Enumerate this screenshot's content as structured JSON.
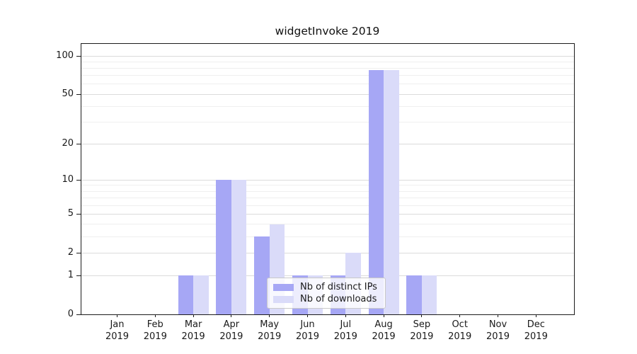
{
  "page": {
    "background": "#ffffff"
  },
  "chart_data": {
    "type": "bar",
    "title": "widgetInvoke 2019",
    "categories": [
      "Jan 2019",
      "Feb 2019",
      "Mar 2019",
      "Apr 2019",
      "May 2019",
      "Jun 2019",
      "Jul 2019",
      "Aug 2019",
      "Sep 2019",
      "Oct 2019",
      "Nov 2019",
      "Dec 2019"
    ],
    "series": [
      {
        "name": "Nb of distinct IPs",
        "color": "#a6a7f5",
        "values": [
          0,
          0,
          1,
          10,
          3,
          1,
          1,
          77,
          1,
          0,
          0,
          0
        ]
      },
      {
        "name": "Nb of downloads",
        "color": "#dadbf9",
        "values": [
          0,
          0,
          1,
          10,
          4,
          1,
          2,
          77,
          1,
          0,
          0,
          0
        ]
      }
    ],
    "yticks": [
      0,
      1,
      2,
      5,
      10,
      20,
      50,
      100
    ],
    "yscale": "log10(1+x)",
    "ylim": [
      0,
      126
    ],
    "xlabel": "",
    "ylabel": "",
    "grid": true,
    "legend": {
      "position": "inside-bottom-center"
    },
    "colors": {
      "spine": "#1c1c1c",
      "grid_major": "#dbdbdb",
      "grid_minor": "#efefef",
      "background": "#ffffff"
    }
  }
}
